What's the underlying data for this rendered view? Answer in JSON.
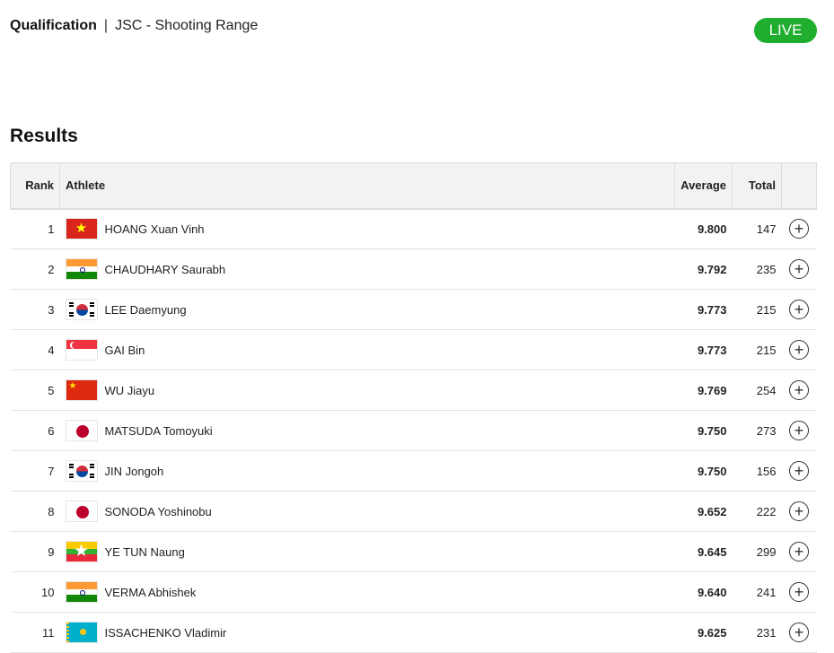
{
  "header": {
    "stage": "Qualification",
    "separator": "|",
    "venue": "JSC - Shooting Range",
    "live_badge": "LIVE",
    "live_color": "#1fae2e"
  },
  "section_title": "Results",
  "columns": {
    "rank": "Rank",
    "athlete": "Athlete",
    "average": "Average",
    "total": "Total"
  },
  "rows": [
    {
      "rank": "1",
      "flag": "vietnam",
      "athlete": "HOANG Xuan Vinh",
      "average": "9.800",
      "total": "147"
    },
    {
      "rank": "2",
      "flag": "india",
      "athlete": "CHAUDHARY Saurabh",
      "average": "9.792",
      "total": "235"
    },
    {
      "rank": "3",
      "flag": "korea",
      "athlete": "LEE Daemyung",
      "average": "9.773",
      "total": "215"
    },
    {
      "rank": "4",
      "flag": "singapore",
      "athlete": "GAI Bin",
      "average": "9.773",
      "total": "215"
    },
    {
      "rank": "5",
      "flag": "china",
      "athlete": "WU Jiayu",
      "average": "9.769",
      "total": "254"
    },
    {
      "rank": "6",
      "flag": "japan",
      "athlete": "MATSUDA Tomoyuki",
      "average": "9.750",
      "total": "273"
    },
    {
      "rank": "7",
      "flag": "korea",
      "athlete": "JIN Jongoh",
      "average": "9.750",
      "total": "156"
    },
    {
      "rank": "8",
      "flag": "japan",
      "athlete": "SONODA Yoshinobu",
      "average": "9.652",
      "total": "222"
    },
    {
      "rank": "9",
      "flag": "myanmar",
      "athlete": "YE TUN Naung",
      "average": "9.645",
      "total": "299"
    },
    {
      "rank": "10",
      "flag": "india",
      "athlete": "VERMA Abhishek",
      "average": "9.640",
      "total": "241"
    },
    {
      "rank": "11",
      "flag": "kazakhstan",
      "athlete": "ISSACHENKO Vladimir",
      "average": "9.625",
      "total": "231"
    }
  ]
}
